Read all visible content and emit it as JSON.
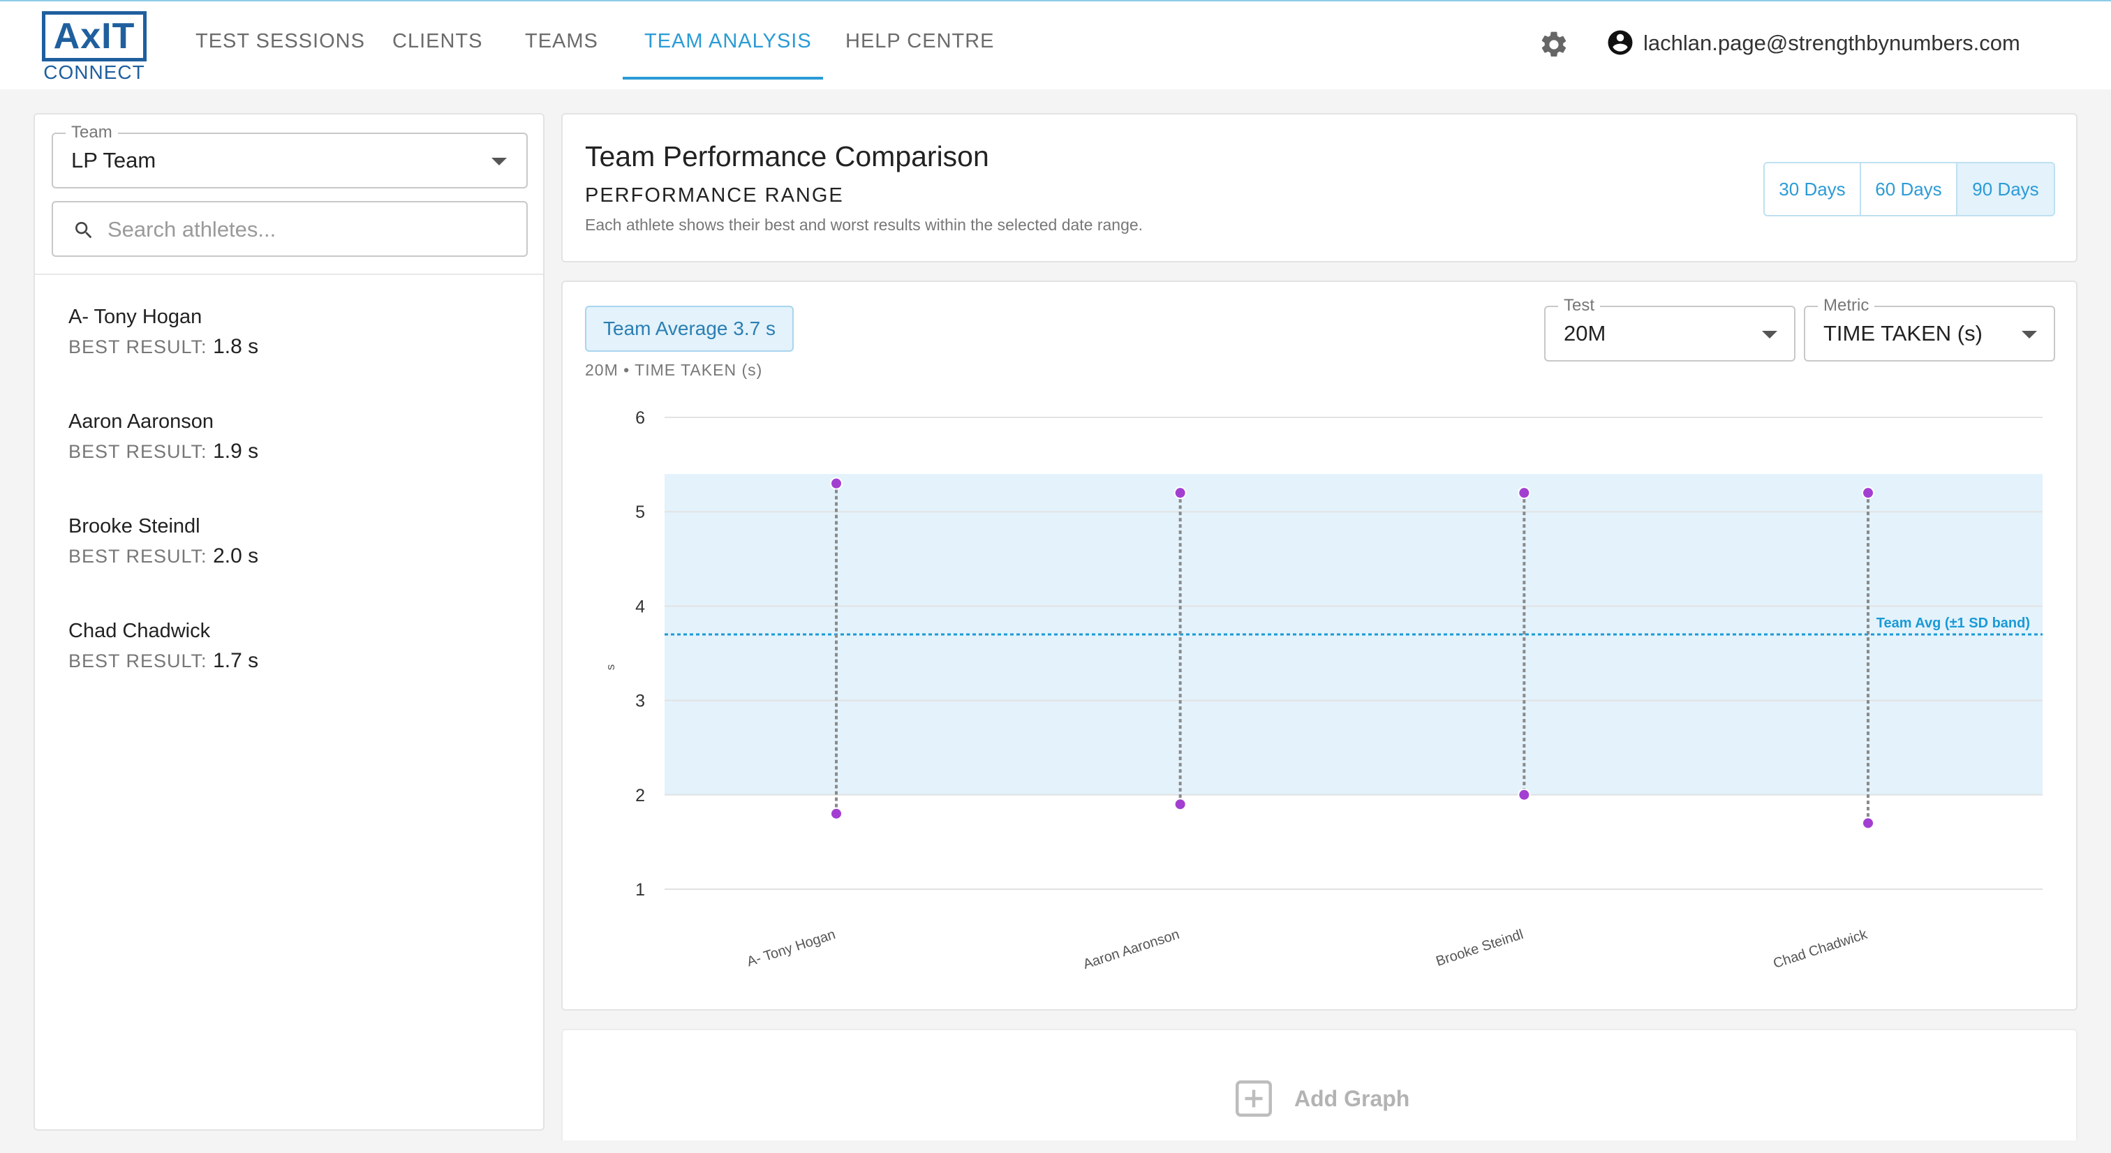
{
  "app": {
    "logo_main": "AxIT",
    "logo_sub": "CONNECT"
  },
  "nav": {
    "items": [
      {
        "label": "TEST SESSIONS"
      },
      {
        "label": "CLIENTS"
      },
      {
        "label": "TEAMS"
      },
      {
        "label": "TEAM ANALYSIS",
        "active": true
      },
      {
        "label": "HELP CENTRE"
      }
    ],
    "settings_icon": "gear-icon",
    "user_icon": "account-circle-icon",
    "user_email": "lachlan.page@strengthbynumbers.com"
  },
  "sidebar": {
    "team_label": "Team",
    "team_value": "LP Team",
    "search_placeholder": "Search athletes...",
    "search_value": "",
    "best_label": "BEST RESULT:",
    "athletes": [
      {
        "name": "A- Tony Hogan",
        "best": "1.8 s"
      },
      {
        "name": "Aaron Aaronson",
        "best": "1.9 s"
      },
      {
        "name": "Brooke Steindl",
        "best": "2.0 s"
      },
      {
        "name": "Chad Chadwick",
        "best": "1.7 s"
      }
    ]
  },
  "header": {
    "title": "Team Performance Comparison",
    "subtitle": "PERFORMANCE RANGE",
    "description": "Each athlete shows their best and worst results within the selected date range.",
    "ranges": [
      {
        "label": "30 Days"
      },
      {
        "label": "60 Days"
      },
      {
        "label": "90 Days",
        "active": true
      }
    ]
  },
  "chart_panel": {
    "avg_chip": "Team Average 3.7 s",
    "caption": "20M • TIME TAKEN (s)",
    "test_label": "Test",
    "test_value": "20M",
    "metric_label": "Metric",
    "metric_value": "TIME TAKEN (s)"
  },
  "chart_data": {
    "type": "range",
    "categories": [
      "A- Tony Hogan",
      "Aaron Aaronson",
      "Brooke Steindl",
      "Chad Chadwick"
    ],
    "best": [
      1.8,
      1.9,
      2.0,
      1.7
    ],
    "worst": [
      5.3,
      5.2,
      5.2,
      5.2
    ],
    "team_average": 3.7,
    "sd_band": [
      2.0,
      5.4
    ],
    "avg_label": "Team Avg (±1 SD band)",
    "ylabel": "s",
    "ylim": [
      1,
      6
    ],
    "yticks": [
      1,
      2,
      3,
      4,
      5,
      6
    ],
    "grid": true,
    "colors": {
      "point": "#a23fd1",
      "avg_line": "#1a9ad6",
      "band": "#e3f2fb",
      "range_line": "#8a8a8a"
    }
  },
  "add_graph": {
    "label": "Add Graph",
    "icon": "add-box-icon"
  }
}
